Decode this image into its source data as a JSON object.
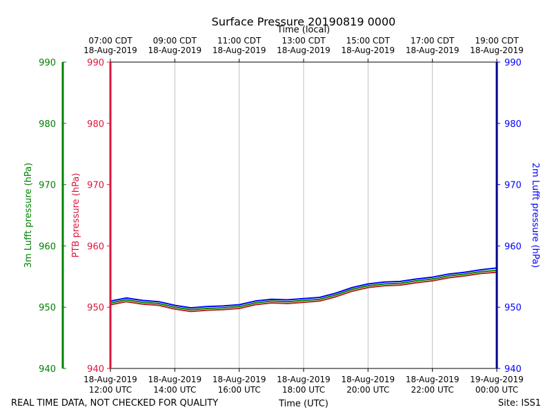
{
  "chart_data": {
    "type": "line",
    "title": "Surface Pressure 20190819 0000",
    "xlabel_bottom": "Time (UTC)",
    "xlabel_top": "Time (local)",
    "footer_left": "REAL TIME DATA, NOT CHECKED FOR QUALITY",
    "footer_right": "Site: ISS1",
    "x_range_utc": [
      "2019-08-18 12:00",
      "2019-08-19 00:00"
    ],
    "ylim": [
      940,
      990
    ],
    "y_ticks": [
      940,
      950,
      960,
      970,
      980,
      990
    ],
    "grid": "vertical",
    "bottom_ticks": [
      {
        "date": "18-Aug-2019",
        "time": "12:00 UTC"
      },
      {
        "date": "18-Aug-2019",
        "time": "14:00 UTC"
      },
      {
        "date": "18-Aug-2019",
        "time": "16:00 UTC"
      },
      {
        "date": "18-Aug-2019",
        "time": "18:00 UTC"
      },
      {
        "date": "18-Aug-2019",
        "time": "20:00 UTC"
      },
      {
        "date": "18-Aug-2019",
        "time": "22:00 UTC"
      },
      {
        "date": "19-Aug-2019",
        "time": "00:00 UTC"
      }
    ],
    "top_ticks": [
      {
        "time": "07:00 CDT",
        "date": "18-Aug-2019"
      },
      {
        "time": "09:00 CDT",
        "date": "18-Aug-2019"
      },
      {
        "time": "11:00 CDT",
        "date": "18-Aug-2019"
      },
      {
        "time": "13:00 CDT",
        "date": "18-Aug-2019"
      },
      {
        "time": "15:00 CDT",
        "date": "18-Aug-2019"
      },
      {
        "time": "17:00 CDT",
        "date": "18-Aug-2019"
      },
      {
        "time": "19:00 CDT",
        "date": "18-Aug-2019"
      }
    ],
    "axes": {
      "ptb": {
        "label": "PTB pressure (hPa)",
        "color": "#dc143c"
      },
      "lufft3m": {
        "label": "3m Lufft pressure (hPa)",
        "color": "#008000"
      },
      "lufft2m": {
        "label": "2m Lufft pressure (hPa)",
        "color": "#0000ff"
      }
    },
    "x": [
      "12:00",
      "12:30",
      "13:00",
      "13:30",
      "14:00",
      "14:30",
      "15:00",
      "15:30",
      "16:00",
      "16:30",
      "17:00",
      "17:30",
      "18:00",
      "18:30",
      "19:00",
      "19:30",
      "20:00",
      "20:30",
      "21:00",
      "21:30",
      "22:00",
      "22:30",
      "23:00",
      "23:30",
      "00:00"
    ],
    "series": [
      {
        "name": "PTB pressure (hPa)",
        "color": "#b22222",
        "values": [
          950.4,
          950.9,
          950.5,
          950.3,
          949.7,
          949.3,
          949.5,
          949.6,
          949.8,
          950.4,
          950.7,
          950.6,
          950.8,
          951.0,
          951.7,
          952.6,
          953.2,
          953.5,
          953.6,
          954.0,
          954.3,
          954.8,
          955.1,
          955.5,
          955.7
        ]
      },
      {
        "name": "3m Lufft pressure (hPa)",
        "color": "#008000",
        "values": [
          950.7,
          951.2,
          950.8,
          950.6,
          950.0,
          949.6,
          949.8,
          949.9,
          950.1,
          950.7,
          951.0,
          950.9,
          951.1,
          951.3,
          952.0,
          952.9,
          953.5,
          953.8,
          953.9,
          954.3,
          954.6,
          955.1,
          955.4,
          955.8,
          956.0
        ]
      },
      {
        "name": "2m Lufft pressure (hPa)",
        "color": "#0000ff",
        "values": [
          951.0,
          951.5,
          951.1,
          950.9,
          950.3,
          949.9,
          950.1,
          950.2,
          950.4,
          951.0,
          951.3,
          951.2,
          951.4,
          951.6,
          952.3,
          953.2,
          953.8,
          954.1,
          954.2,
          954.6,
          954.9,
          955.4,
          955.7,
          956.1,
          956.4
        ]
      }
    ]
  }
}
